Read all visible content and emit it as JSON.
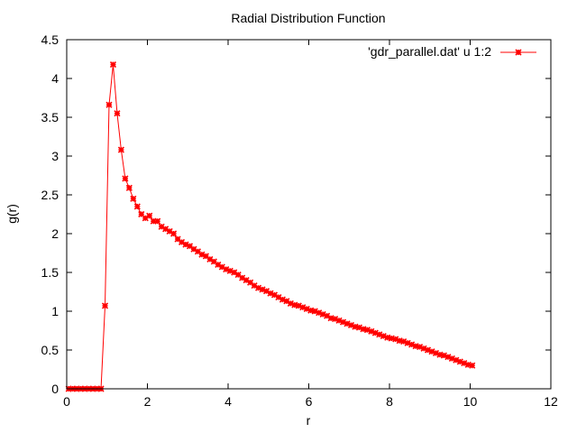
{
  "chart_data": {
    "type": "line",
    "title": "Radial Distribution Function",
    "xlabel": "r",
    "ylabel": "g(r)",
    "xlim": [
      0,
      12
    ],
    "ylim": [
      0,
      4.5
    ],
    "xticks": [
      "0",
      "2",
      "4",
      "6",
      "8",
      "10",
      "12"
    ],
    "yticks": [
      "0",
      "0.5",
      "1",
      "1.5",
      "2",
      "2.5",
      "3",
      "3.5",
      "4",
      "4.5"
    ],
    "grid": false,
    "legend_position": "top-right",
    "series": [
      {
        "name": "'gdr_parallel.dat' u 1:2",
        "color": "#ff0000",
        "marker": "asterisk",
        "x": [
          0.05,
          0.15,
          0.25,
          0.35,
          0.45,
          0.55,
          0.65,
          0.75,
          0.85,
          0.95,
          1.05,
          1.15,
          1.25,
          1.35,
          1.45,
          1.55,
          1.65,
          1.75,
          1.85,
          1.95,
          2.05,
          2.15,
          2.25,
          2.35,
          2.45,
          2.55,
          2.65,
          2.75,
          2.85,
          2.95,
          3.05,
          3.15,
          3.25,
          3.35,
          3.45,
          3.55,
          3.65,
          3.75,
          3.85,
          3.95,
          4.05,
          4.15,
          4.25,
          4.35,
          4.45,
          4.55,
          4.65,
          4.75,
          4.85,
          4.95,
          5.05,
          5.15,
          5.25,
          5.35,
          5.45,
          5.55,
          5.65,
          5.75,
          5.85,
          5.95,
          6.05,
          6.15,
          6.25,
          6.35,
          6.45,
          6.55,
          6.65,
          6.75,
          6.85,
          6.95,
          7.05,
          7.15,
          7.25,
          7.35,
          7.45,
          7.55,
          7.65,
          7.75,
          7.85,
          7.95,
          8.05,
          8.15,
          8.25,
          8.35,
          8.45,
          8.55,
          8.65,
          8.75,
          8.85,
          8.95,
          9.05,
          9.15,
          9.25,
          9.35,
          9.45,
          9.55,
          9.65,
          9.75,
          9.85,
          9.95,
          10.05
        ],
        "y": [
          0.0,
          0.0,
          0.0,
          0.0,
          0.0,
          0.0,
          0.0,
          0.0,
          0.0,
          1.07,
          3.66,
          4.18,
          3.55,
          3.08,
          2.71,
          2.59,
          2.45,
          2.35,
          2.25,
          2.2,
          2.23,
          2.16,
          2.16,
          2.09,
          2.06,
          2.03,
          2.0,
          1.93,
          1.89,
          1.86,
          1.84,
          1.8,
          1.77,
          1.73,
          1.71,
          1.67,
          1.64,
          1.6,
          1.57,
          1.54,
          1.52,
          1.5,
          1.47,
          1.43,
          1.4,
          1.37,
          1.33,
          1.3,
          1.28,
          1.26,
          1.23,
          1.21,
          1.18,
          1.15,
          1.13,
          1.1,
          1.08,
          1.07,
          1.05,
          1.03,
          1.01,
          1.0,
          0.98,
          0.96,
          0.94,
          0.91,
          0.9,
          0.88,
          0.86,
          0.84,
          0.82,
          0.8,
          0.79,
          0.77,
          0.76,
          0.74,
          0.72,
          0.7,
          0.68,
          0.66,
          0.65,
          0.64,
          0.62,
          0.61,
          0.59,
          0.57,
          0.55,
          0.54,
          0.52,
          0.5,
          0.48,
          0.46,
          0.44,
          0.43,
          0.41,
          0.39,
          0.37,
          0.35,
          0.33,
          0.31,
          0.3
        ]
      }
    ]
  }
}
